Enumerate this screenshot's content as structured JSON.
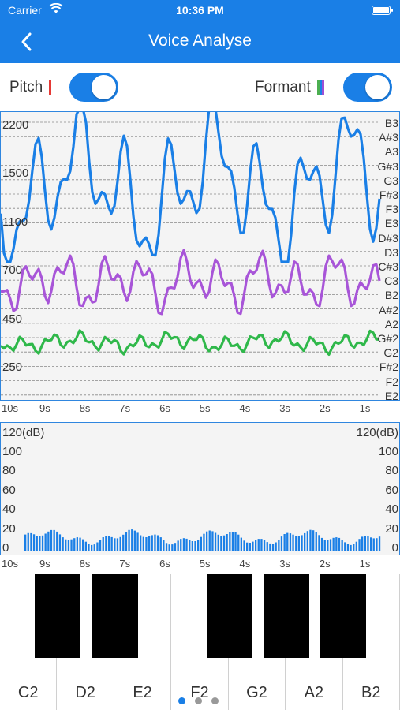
{
  "status": {
    "carrier": "Carrier",
    "time": "10:36 PM"
  },
  "header": {
    "title": "Voice Analyse",
    "color": "#1a7fe6"
  },
  "controls": {
    "pitch": {
      "label": "Pitch",
      "on": true,
      "marker_color": "#e53935"
    },
    "formant": {
      "label": "Formant",
      "on": true,
      "marker_colors": [
        "#4caf50",
        "#1a7fe6",
        "#9c4fd6"
      ]
    }
  },
  "pitch_chart": {
    "note_labels": [
      "B3",
      "A#3",
      "A3",
      "G#3",
      "G3",
      "F#3",
      "F3",
      "E3",
      "D#3",
      "D3",
      "C#3",
      "C3",
      "B2",
      "A#2",
      "A2",
      "G#2",
      "G2",
      "F#2",
      "F2",
      "E2"
    ],
    "freq_labels": [
      "2200",
      "1500",
      "1100",
      "700",
      "450",
      "250"
    ],
    "time_labels": [
      "10s",
      "9s",
      "8s",
      "7s",
      "6s",
      "5s",
      "4s",
      "3s",
      "2s",
      "1s"
    ],
    "series_colors": {
      "formant_high": "#1a7fe6",
      "formant_mid": "#a855d8",
      "pitch": "#2fb84a"
    }
  },
  "level_chart": {
    "db_labels": [
      "120(dB)",
      "100",
      "80",
      "60",
      "40",
      "20",
      "0"
    ],
    "time_labels": [
      "10s",
      "9s",
      "8s",
      "7s",
      "6s",
      "5s",
      "4s",
      "3s",
      "2s",
      "1s"
    ],
    "bar_color": "#1a7fe6"
  },
  "piano": {
    "white_keys": [
      "C2",
      "D2",
      "E2",
      "F2",
      "G2",
      "A2",
      "B2"
    ],
    "page_count": 3,
    "active_page": 1
  }
}
